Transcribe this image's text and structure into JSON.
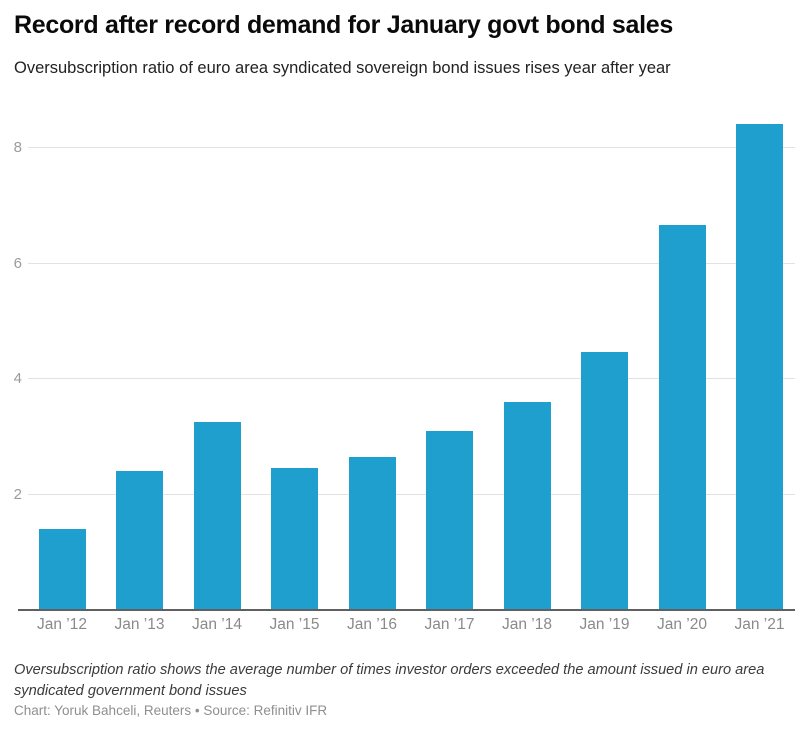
{
  "header": {
    "title": "Record after record demand for January govt bond sales",
    "subtitle": "Oversubscription ratio of euro area syndicated sovereign bond issues rises year after year"
  },
  "chart_data": {
    "type": "bar",
    "title": "Record after record demand for January govt bond sales",
    "subtitle": "Oversubscription ratio of euro area syndicated sovereign bond issues rises year after year",
    "categories": [
      "Jan ’12",
      "Jan ’13",
      "Jan ’14",
      "Jan ’15",
      "Jan ’16",
      "Jan ’17",
      "Jan ’18",
      "Jan ’19",
      "Jan ’20",
      "Jan ’21"
    ],
    "values": [
      1.4,
      2.4,
      3.25,
      2.45,
      2.65,
      3.1,
      3.6,
      4.45,
      6.65,
      8.4
    ],
    "xlabel": "",
    "ylabel": "",
    "ylim": [
      0,
      8.8
    ],
    "yticks": [
      2,
      4,
      6,
      8
    ],
    "grid": true,
    "legend": false,
    "colors": {
      "bar": "#1f9fce",
      "axis_line": "#606060",
      "gridline": "#e2e2e2",
      "y_tick_label": "#9b9b9b",
      "x_tick_label": "#8a8a8a"
    }
  },
  "footer": {
    "note": "Oversubscription ratio shows the average number of times investor orders exceeded the amount issued in euro area syndicated government bond issues",
    "credit": "Chart: Yoruk Bahceli, Reuters • Source: Refinitiv IFR"
  }
}
